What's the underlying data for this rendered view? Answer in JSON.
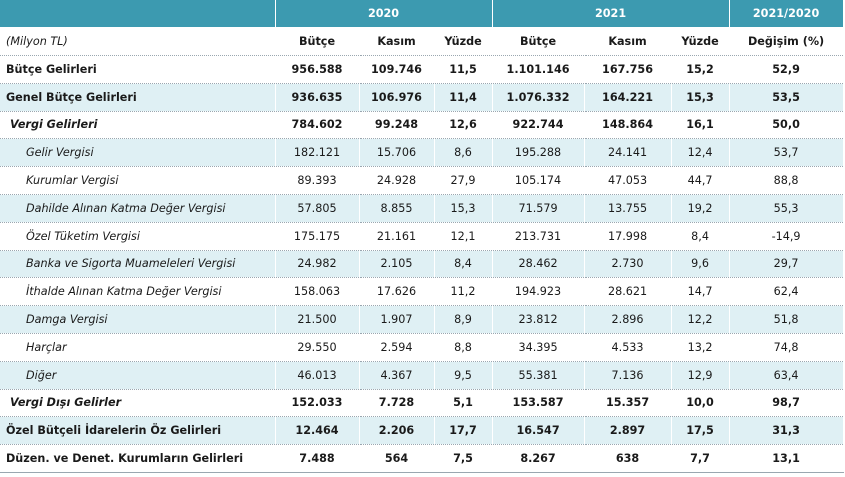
{
  "header": {
    "year1": "2020",
    "year2": "2021",
    "change_group": "2021/2020",
    "unit": "(Milyon TL)",
    "cols": [
      "Bütçe",
      "Kasım",
      "Yüzde",
      "Bütçe",
      "Kasım",
      "Yüzde",
      "Değişim (%)"
    ]
  },
  "rows": [
    {
      "label": "Bütçe Gelirleri",
      "values": [
        "956.588",
        "109.746",
        "11,5",
        "1.101.146",
        "167.756",
        "15,2",
        "52,9"
      ]
    },
    {
      "label": "Genel Bütçe Gelirleri",
      "values": [
        "936.635",
        "106.976",
        "11,4",
        "1.076.332",
        "164.221",
        "15,3",
        "53,5"
      ]
    },
    {
      "label": "Vergi Gelirleri",
      "values": [
        "784.602",
        "99.248",
        "12,6",
        "922.744",
        "148.864",
        "16,1",
        "50,0"
      ]
    },
    {
      "label": "Gelir Vergisi",
      "values": [
        "182.121",
        "15.706",
        "8,6",
        "195.288",
        "24.141",
        "12,4",
        "53,7"
      ]
    },
    {
      "label": "Kurumlar Vergisi",
      "values": [
        "89.393",
        "24.928",
        "27,9",
        "105.174",
        "47.053",
        "44,7",
        "88,8"
      ]
    },
    {
      "label": "Dahilde Alınan Katma Değer Vergisi",
      "values": [
        "57.805",
        "8.855",
        "15,3",
        "71.579",
        "13.755",
        "19,2",
        "55,3"
      ]
    },
    {
      "label": "Özel Tüketim Vergisi",
      "values": [
        "175.175",
        "21.161",
        "12,1",
        "213.731",
        "17.998",
        "8,4",
        "-14,9"
      ]
    },
    {
      "label": "Banka ve Sigorta Muameleleri Vergisi",
      "values": [
        "24.982",
        "2.105",
        "8,4",
        "28.462",
        "2.730",
        "9,6",
        "29,7"
      ]
    },
    {
      "label": "İthalde Alınan Katma Değer Vergisi",
      "values": [
        "158.063",
        "17.626",
        "11,2",
        "194.923",
        "28.621",
        "14,7",
        "62,4"
      ]
    },
    {
      "label": "Damga Vergisi",
      "values": [
        "21.500",
        "1.907",
        "8,9",
        "23.812",
        "2.896",
        "12,2",
        "51,8"
      ]
    },
    {
      "label": "Harçlar",
      "values": [
        "29.550",
        "2.594",
        "8,8",
        "34.395",
        "4.533",
        "13,2",
        "74,8"
      ]
    },
    {
      "label": "Diğer",
      "values": [
        "46.013",
        "4.367",
        "9,5",
        "55.381",
        "7.136",
        "12,9",
        "63,4"
      ]
    },
    {
      "label": "Vergi Dışı Gelirler",
      "values": [
        "152.033",
        "7.728",
        "5,1",
        "153.587",
        "15.357",
        "10,0",
        "98,7"
      ]
    },
    {
      "label": "Özel Bütçeli İdarelerin Öz Gelirleri",
      "values": [
        "12.464",
        "2.206",
        "17,7",
        "16.547",
        "2.897",
        "17,5",
        "31,3"
      ]
    },
    {
      "label": "Düzen. ve Denet. Kurumların Gelirleri",
      "values": [
        "7.488",
        "564",
        "7,5",
        "8.267",
        "638",
        "7,7",
        "13,1"
      ]
    }
  ]
}
